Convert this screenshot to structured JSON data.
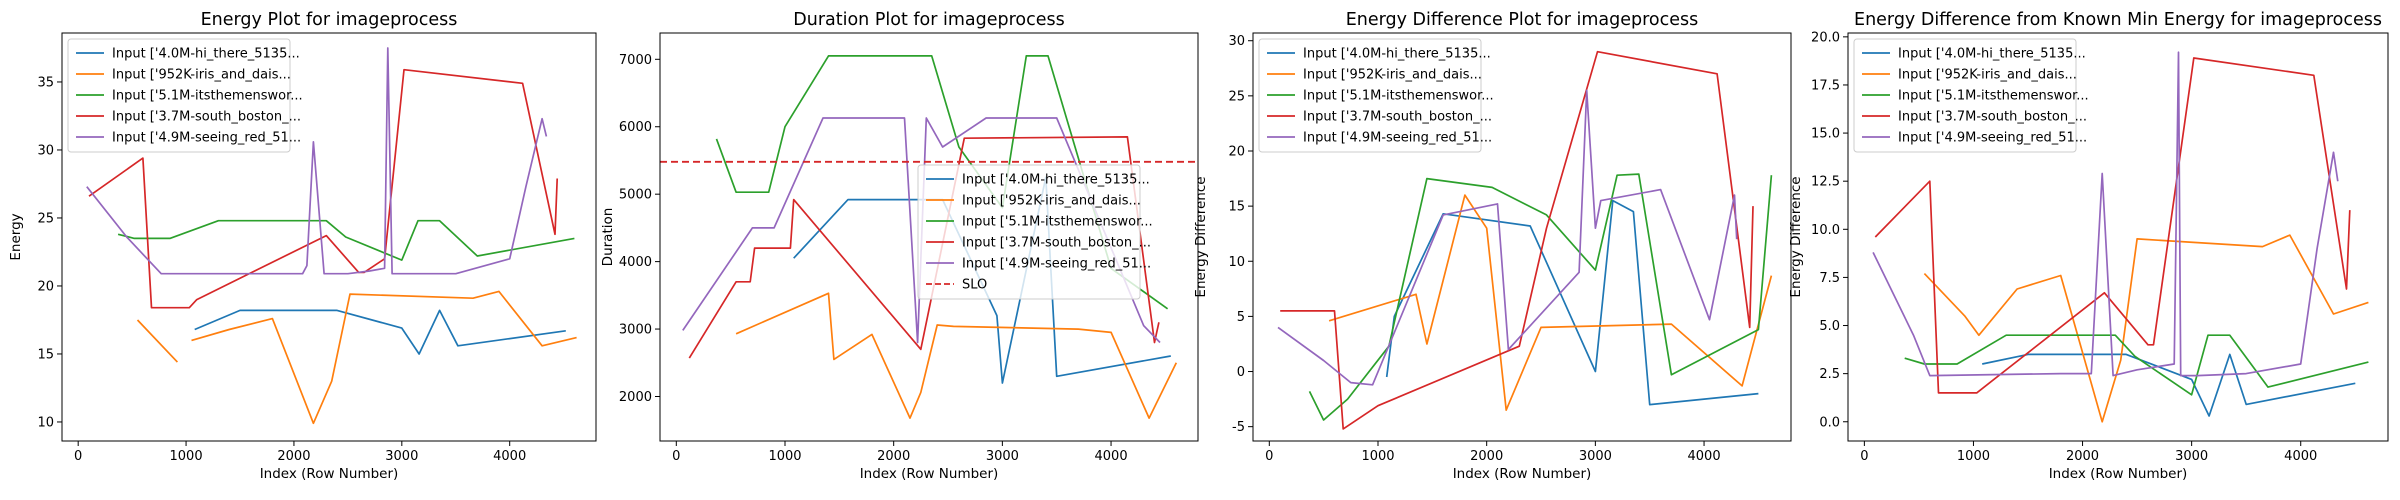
{
  "colors": {
    "blue": "#1f77b4",
    "orange": "#ff7f0e",
    "green": "#2ca02c",
    "red": "#d62728",
    "purple": "#9467bd"
  },
  "chart_data": [
    {
      "type": "line",
      "title": "Energy Plot for imageprocess",
      "xlabel": "Index (Row Number)",
      "ylabel": "Energy",
      "xlim": [
        -150,
        4800
      ],
      "ylim": [
        8.6,
        38.6
      ],
      "xticks": [
        0,
        1000,
        2000,
        3000,
        4000
      ],
      "yticks": [
        10,
        15,
        20,
        25,
        30,
        35
      ],
      "grid": false,
      "legend_position": "top-left",
      "series": [
        {
          "name": "Input ['4.0M-hi_there_5135...",
          "color": "#1f77b4",
          "x": [
            1080,
            1500,
            2400,
            3000,
            3160,
            3350,
            3520,
            4520
          ],
          "y": [
            16.8,
            18.2,
            18.2,
            16.9,
            15.0,
            18.2,
            15.6,
            16.7
          ]
        },
        {
          "name": "Input ['952K-iris_and_dais...",
          "color": "#ff7f0e",
          "x": [
            550,
            920,
            1050,
            1400,
            1800,
            2180,
            2350,
            2520,
            3660,
            3900,
            4300,
            4620
          ],
          "y": [
            17.5,
            14.4,
            16.0,
            16.8,
            17.6,
            9.9,
            13.0,
            19.4,
            19.1,
            19.6,
            15.6,
            16.2
          ],
          "segments": [
            [
              0,
              1
            ],
            [
              2,
              3,
              4,
              5,
              6,
              7,
              8,
              9,
              10,
              11
            ]
          ]
        },
        {
          "name": "Input ['5.1M-itsthemenswor...",
          "color": "#2ca02c",
          "x": [
            370,
            520,
            850,
            1300,
            2050,
            2300,
            2480,
            3000,
            3150,
            3350,
            3700,
            4600
          ],
          "y": [
            23.8,
            23.5,
            23.5,
            24.8,
            24.8,
            24.8,
            23.6,
            21.9,
            24.8,
            24.8,
            22.2,
            23.5
          ]
        },
        {
          "name": "Input ['3.7M-south_boston_...",
          "color": "#d62728",
          "x": [
            100,
            600,
            680,
            1030,
            1100,
            2300,
            2600,
            2650,
            2840,
            3020,
            4120,
            4420,
            4440
          ],
          "y": [
            26.6,
            29.4,
            18.4,
            18.4,
            19.0,
            23.7,
            21.0,
            21.0,
            22.0,
            35.9,
            34.9,
            23.8,
            27.9
          ]
        },
        {
          "name": "Input ['4.9M-seeing_red_51...",
          "color": "#9467bd",
          "x": [
            80,
            450,
            770,
            1600,
            2080,
            2120,
            2180,
            2280,
            2500,
            2700,
            2840,
            2870,
            2910,
            3500,
            4000,
            4150,
            4300,
            4340
          ],
          "y": [
            27.3,
            23.6,
            20.9,
            20.9,
            20.9,
            21.5,
            30.6,
            20.9,
            20.9,
            21.1,
            21.3,
            37.5,
            20.9,
            20.9,
            22.0,
            27.3,
            32.3,
            31.0
          ]
        }
      ]
    },
    {
      "type": "line",
      "title": "Duration Plot for imageprocess",
      "xlabel": "Index (Row Number)",
      "ylabel": "Duration",
      "xlim": [
        -150,
        4800
      ],
      "ylim": [
        1340,
        7390
      ],
      "xticks": [
        0,
        1000,
        2000,
        3000,
        4000
      ],
      "yticks": [
        2000,
        3000,
        4000,
        5000,
        6000,
        7000
      ],
      "grid": false,
      "legend_position": "center-right",
      "slo": {
        "name": "SLO",
        "value": 5480,
        "color": "#d62728"
      },
      "series": [
        {
          "name": "Input ['4.0M-hi_there_5135...",
          "color": "#1f77b4",
          "x": [
            1080,
            1580,
            2450,
            2950,
            3000,
            3400,
            3500,
            4550
          ],
          "y": [
            4050,
            4920,
            4920,
            3200,
            2200,
            5250,
            2300,
            2600
          ]
        },
        {
          "name": "Input ['952K-iris_and_dais...",
          "color": "#ff7f0e",
          "x": [
            550,
            1400,
            1450,
            1800,
            2150,
            2250,
            2400,
            2550,
            3700,
            4000,
            4350,
            4600
          ],
          "y": [
            2930,
            3530,
            2550,
            2920,
            1680,
            2060,
            3060,
            3040,
            3000,
            2950,
            1680,
            2500
          ]
        },
        {
          "name": "Input ['5.1M-itsthemenswor...",
          "color": "#2ca02c",
          "x": [
            370,
            550,
            850,
            1000,
            1400,
            2350,
            2600,
            3000,
            3220,
            3420,
            4000,
            4520
          ],
          "y": [
            5820,
            5030,
            5030,
            6000,
            7050,
            7050,
            5700,
            4800,
            7050,
            7050,
            3900,
            3300
          ]
        },
        {
          "name": "Input ['3.7M-south_boston_...",
          "color": "#d62728",
          "x": [
            120,
            550,
            680,
            720,
            1050,
            1080,
            2250,
            2650,
            4150,
            4400,
            4440
          ],
          "y": [
            2570,
            3700,
            3700,
            4200,
            4200,
            4920,
            2700,
            5830,
            5850,
            2800,
            3100
          ]
        },
        {
          "name": "Input ['4.9M-seeing_red_51...",
          "color": "#9467bd",
          "x": [
            60,
            700,
            900,
            1350,
            2100,
            2220,
            2300,
            2450,
            2850,
            3500,
            4300,
            4450
          ],
          "y": [
            2980,
            4500,
            4500,
            6130,
            6130,
            2800,
            6130,
            5700,
            6130,
            6130,
            3050,
            2800
          ]
        }
      ]
    },
    {
      "type": "line",
      "title": "Energy Difference Plot for imageprocess",
      "xlabel": "Index (Row Number)",
      "ylabel": "Energy Difference",
      "xlim": [
        -150,
        4800
      ],
      "ylim": [
        -6.3,
        30.7
      ],
      "xticks": [
        0,
        1000,
        2000,
        3000,
        4000
      ],
      "yticks": [
        -5,
        0,
        5,
        10,
        15,
        20,
        25,
        30
      ],
      "grid": false,
      "legend_position": "top-left",
      "series": [
        {
          "name": "Input ['4.0M-hi_there_5135...",
          "color": "#1f77b4",
          "x": [
            1080,
            1150,
            1600,
            2400,
            3000,
            3160,
            3350,
            3500,
            4500
          ],
          "y": [
            -0.5,
            5.0,
            14.3,
            13.2,
            0.0,
            15.5,
            14.5,
            -3.0,
            -2.0
          ]
        },
        {
          "name": "Input ['952K-iris_and_dais...",
          "color": "#ff7f0e",
          "x": [
            550,
            1350,
            1450,
            1800,
            2000,
            2180,
            2500,
            3700,
            4350,
            4620
          ],
          "y": [
            4.6,
            7.0,
            2.5,
            16.0,
            13.0,
            -3.5,
            4.0,
            4.3,
            -1.3,
            8.7
          ]
        },
        {
          "name": "Input ['5.1M-itsthemenswor...",
          "color": "#2ca02c",
          "x": [
            370,
            500,
            720,
            1100,
            1450,
            2050,
            2550,
            3000,
            3200,
            3400,
            3700,
            4500,
            4620
          ],
          "y": [
            -1.8,
            -4.4,
            -2.5,
            2.3,
            17.5,
            16.7,
            14.2,
            9.2,
            17.8,
            17.9,
            -0.3,
            3.8,
            17.8
          ]
        },
        {
          "name": "Input ['3.7M-south_boston_...",
          "color": "#d62728",
          "x": [
            100,
            600,
            680,
            1000,
            2300,
            2550,
            3020,
            4120,
            4420,
            4450
          ],
          "y": [
            5.5,
            5.5,
            -5.2,
            -3.1,
            2.3,
            13.0,
            29.0,
            27.0,
            4.0,
            15.0
          ]
        },
        {
          "name": "Input ['4.9M-seeing_red_51...",
          "color": "#9467bd",
          "x": [
            80,
            500,
            750,
            950,
            1600,
            2100,
            2200,
            2850,
            2920,
            3000,
            3050,
            3600,
            4050,
            4280,
            4300
          ],
          "y": [
            4.0,
            1.0,
            -1.0,
            -1.2,
            14.2,
            15.2,
            2.0,
            9.0,
            25.5,
            13.0,
            15.5,
            16.5,
            4.7,
            16.0,
            12.0
          ]
        }
      ]
    },
    {
      "type": "line",
      "title": "Energy Difference from Known Min Energy for imageprocess",
      "xlabel": "Index (Row Number)",
      "ylabel": "Energy Difference",
      "xlim": [
        -150,
        4800
      ],
      "ylim": [
        -1.0,
        20.2
      ],
      "xticks": [
        0,
        1000,
        2000,
        3000,
        4000
      ],
      "yticks": [
        0.0,
        2.5,
        5.0,
        7.5,
        10.0,
        12.5,
        15.0,
        17.5,
        20.0
      ],
      "grid": false,
      "legend_position": "top-left",
      "series": [
        {
          "name": "Input ['4.0M-hi_there_5135...",
          "color": "#1f77b4",
          "x": [
            1080,
            1500,
            2400,
            3000,
            3160,
            3350,
            3500,
            4500
          ],
          "y": [
            3.0,
            3.5,
            3.5,
            2.2,
            0.3,
            3.5,
            0.9,
            2.0
          ]
        },
        {
          "name": "Input ['952K-iris_and_dais...",
          "color": "#ff7f0e",
          "x": [
            550,
            920,
            1050,
            1400,
            1800,
            2180,
            2350,
            2500,
            3650,
            3900,
            4300,
            4620
          ],
          "y": [
            7.7,
            5.5,
            4.5,
            6.9,
            7.6,
            0.0,
            3.2,
            9.5,
            9.1,
            9.7,
            5.6,
            6.2
          ]
        },
        {
          "name": "Input ['5.1M-itsthemenswor...",
          "color": "#2ca02c",
          "x": [
            370,
            550,
            850,
            1300,
            2050,
            2300,
            2480,
            3000,
            3150,
            3350,
            3700,
            4620
          ],
          "y": [
            3.3,
            3.0,
            3.0,
            4.5,
            4.5,
            4.5,
            3.4,
            1.4,
            4.5,
            4.5,
            1.8,
            3.1
          ]
        },
        {
          "name": "Input ['3.7M-south_boston_...",
          "color": "#d62728",
          "x": [
            100,
            600,
            680,
            1030,
            2200,
            2600,
            2650,
            3020,
            4120,
            4420,
            4450
          ],
          "y": [
            9.6,
            12.5,
            1.5,
            1.5,
            6.7,
            4.0,
            4.0,
            18.9,
            18.0,
            6.9,
            11.0
          ]
        },
        {
          "name": "Input ['4.9M-seeing_red_51...",
          "color": "#9467bd",
          "x": [
            80,
            450,
            600,
            1800,
            2080,
            2180,
            2280,
            2500,
            2840,
            2880,
            2900,
            3050,
            3500,
            4000,
            4150,
            4300,
            4340
          ],
          "y": [
            8.8,
            4.5,
            2.4,
            2.5,
            2.5,
            12.9,
            2.4,
            2.7,
            3.0,
            19.2,
            2.4,
            2.4,
            2.5,
            3.0,
            9.0,
            14.0,
            12.5
          ]
        }
      ]
    }
  ]
}
